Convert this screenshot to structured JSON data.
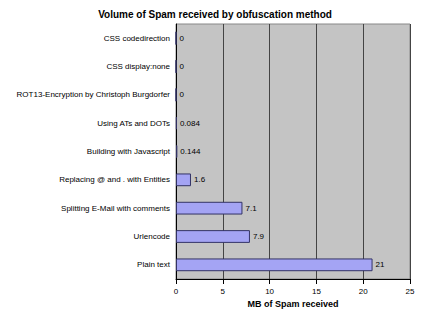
{
  "chart_data": {
    "type": "bar",
    "orientation": "horizontal",
    "title": "Volume of Spam received by obfuscation method",
    "x_label": "MB of Spam received",
    "categories": [
      "CSS codedirection",
      "CSS display:none",
      "ROT13-Encryption by Christoph Burgdorfer",
      "Using ATs and DOTs",
      "Building with Javascript",
      "Replacing @ and . with Entities",
      "Splitting E-Mail with comments",
      "Urlencode",
      "Plain text"
    ],
    "values": [
      0,
      0,
      0,
      0.084,
      0.144,
      1.6,
      7.1,
      7.9,
      21
    ],
    "color": "#a4a4f4",
    "xlim": [
      0,
      25
    ],
    "xticks": [
      0,
      5,
      10,
      15,
      20,
      25
    ],
    "grid": true,
    "data_labels": true
  }
}
